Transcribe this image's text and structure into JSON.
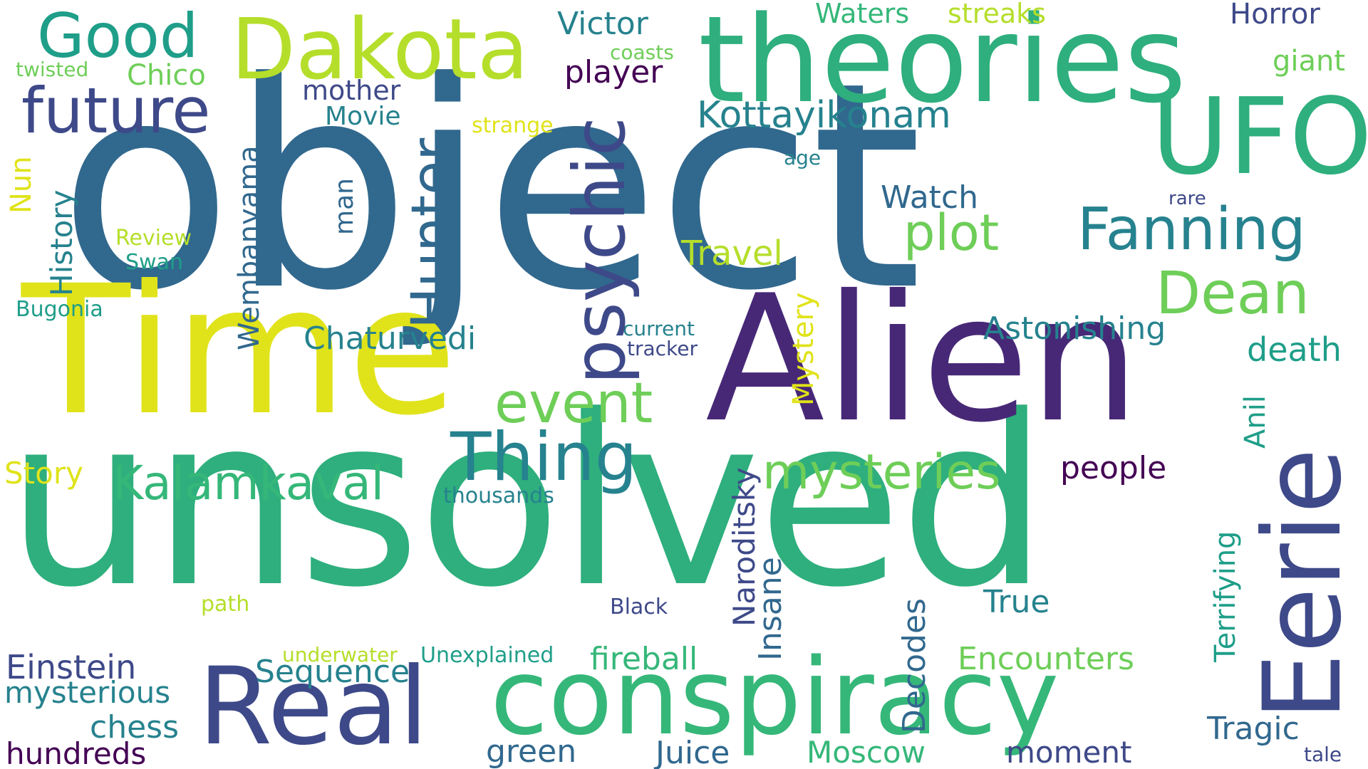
{
  "words": {
    "object": "object",
    "unsolved": "unsolved",
    "time": "Time",
    "alien": "Alien",
    "theories": "theories",
    "ufo": "UFO",
    "dakota": "Dakota",
    "good": "Good",
    "eerie": "Eerie",
    "conspiracy": "conspiracy",
    "real": "Real",
    "future": "future",
    "psychic": "psychic",
    "hunter": "Hunter",
    "thing": "Thing",
    "event": "event",
    "kalamkaval": "Kalamkaval",
    "fanning": "Fanning",
    "dean": "Dean",
    "plot": "plot",
    "mysteries": "mysteries",
    "kottayikonam": "Kottayikonam",
    "victor": "Victor",
    "waters": "Waters",
    "streaks": "streaks",
    "horror": "Horror",
    "giant": "giant",
    "coasts": "coasts",
    "player": "player",
    "twisted": "twisted",
    "chico": "Chico",
    "mother": "mother",
    "movie": "Movie",
    "strange": "strange",
    "age": "age",
    "rare": "rare",
    "watch": "Watch",
    "nun": "Nun",
    "history": "History",
    "wembanyama": "Wembanyama",
    "man": "man",
    "review": "Review",
    "swan": "Swan",
    "travel": "Travel",
    "bugonia": "Bugonia",
    "mystery": "Mystery",
    "current": "current",
    "tracker": "tracker",
    "chaturvedi": "Chaturvedi",
    "astonishing": "Astonishing",
    "death": "death",
    "anil": "Anil",
    "story": "Story",
    "people": "people",
    "thousands": "thousands",
    "naroditsky": "Naroditsky",
    "terrifying": "Terrifying",
    "insane": "Insane",
    "path": "path",
    "black": "Black",
    "true": "True",
    "decodes": "Decodes",
    "underwater": "underwater",
    "unexplained": "Unexplained",
    "fireball": "fireball",
    "encounters": "Encounters",
    "einstein": "Einstein",
    "sequence": "Sequence",
    "mysterious": "mysterious",
    "chess": "chess",
    "tragic": "Tragic",
    "hundreds": "hundreds",
    "green": "green",
    "juice": "Juice",
    "moscow": "Moscow",
    "moment": "moment",
    "tale": "tale"
  },
  "colors": {
    "dark_purple": "#440154",
    "purple": "#472877",
    "indigo": "#3e4989",
    "slate_blue": "#31688e",
    "teal": "#26828e",
    "sea_green": "#1f9e89",
    "green": "#35b779",
    "light_green": "#6ece58",
    "lime": "#b5de2b",
    "yellow": "#e0e31a"
  }
}
